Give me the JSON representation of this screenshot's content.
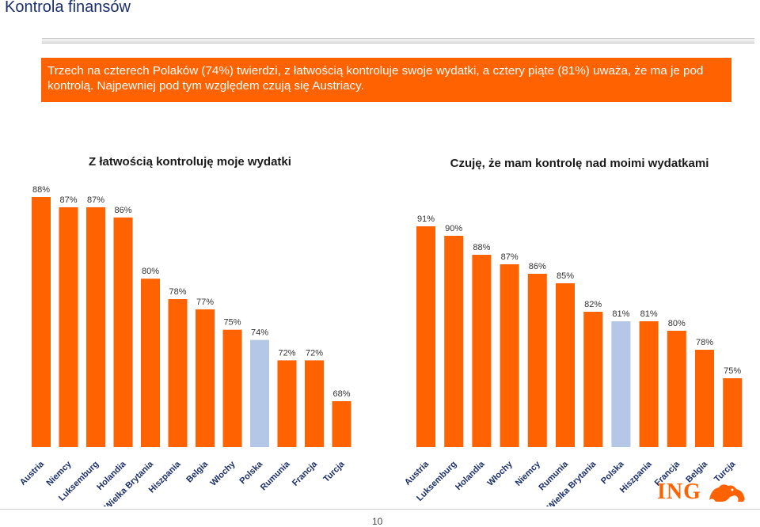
{
  "page": {
    "title": "Kontrola finansów",
    "summary": "Trzech na czterech Polaków (74%) twierdzi, z łatwością kontroluje swoje wydatki, a cztery piąte (81%) uważa, że ma je pod kontrolą. Najpewniej pod tym względem czują się  Austriacy.",
    "page_number": "10",
    "logo_text": "ING",
    "logo": "ing-lion-logo"
  },
  "colors": {
    "accent": "#ff6200",
    "highlight": "#b4c7e7",
    "navy": "#1a2f6b"
  },
  "chart_data": [
    {
      "type": "bar",
      "title": "Z łatwością kontroluję moje wydatki",
      "categories": [
        "Austria",
        "Niemcy",
        "Luksemburg",
        "Holandia",
        "Wielka Brytania",
        "Hiszpania",
        "Belgia",
        "Włochy",
        "Polska",
        "Rumunia",
        "Francja",
        "Turcja"
      ],
      "values": [
        88,
        87,
        87,
        86,
        80,
        78,
        77,
        75,
        74,
        72,
        72,
        68
      ],
      "labels": [
        "88%",
        "87%",
        "87%",
        "86%",
        "80%",
        "78%",
        "77%",
        "75%",
        "74%",
        "72%",
        "72%",
        "68%"
      ],
      "highlight": "Polska",
      "ylim": [
        60,
        90
      ],
      "xlabel": "",
      "ylabel": ""
    },
    {
      "type": "bar",
      "title": "Czuję, że mam kontrolę nad moimi wydatkami",
      "categories": [
        "Austria",
        "Luksemburg",
        "Holandia",
        "Włochy",
        "Niemcy",
        "Rumunia",
        "Wielka Brytania",
        "Polska",
        "Hiszpania",
        "Francja",
        "Belgia",
        "Turcja"
      ],
      "values": [
        91,
        90,
        88,
        87,
        86,
        85,
        82,
        81,
        81,
        80,
        78,
        75
      ],
      "labels": [
        "91%",
        "90%",
        "88%",
        "87%",
        "86%",
        "85%",
        "82%",
        "81%",
        "81%",
        "80%",
        "78%",
        "75%"
      ],
      "highlight": "Polska",
      "ylim": [
        70,
        93
      ],
      "xlabel": "",
      "ylabel": ""
    }
  ]
}
